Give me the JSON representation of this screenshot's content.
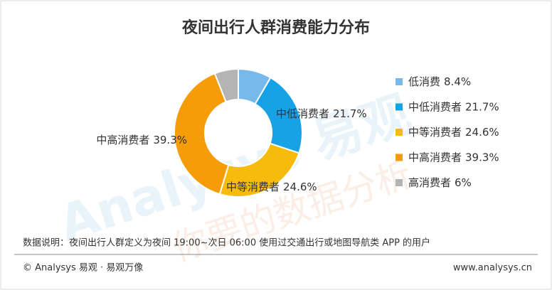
{
  "chart_data": {
    "type": "donut",
    "title": "夜间出行人群消费能力分布",
    "categories": [
      "低消费",
      "中低消费者",
      "中等消费者",
      "中高消费者",
      "高消费者"
    ],
    "values": [
      8.4,
      21.7,
      24.6,
      39.3,
      6
    ],
    "value_labels": [
      "8.4%",
      "21.7%",
      "24.6%",
      "39.3%",
      "6%"
    ],
    "colors": [
      "#78b9ec",
      "#18a2e6",
      "#f6bb0c",
      "#f59c08",
      "#b4b4b4"
    ],
    "legend": "right",
    "watermark": [
      "Analysys 易观",
      "你要的数据分析"
    ]
  },
  "footer": {
    "note": "数据说明：夜间出行人群定义为夜间 19:00~次日 06:00 使用过交通出行或地图导航类 APP 的用户",
    "copyright": "© Analysys 易观 · 易观万像",
    "url": "www.analysys.cn"
  }
}
